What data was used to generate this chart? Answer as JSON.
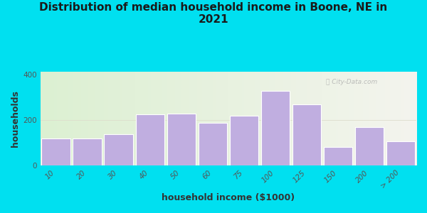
{
  "title": "Distribution of median household income in Boone, NE in\n2021",
  "xlabel": "household income ($1000)",
  "ylabel": "households",
  "bar_labels": [
    "10",
    "20",
    "30",
    "40",
    "50",
    "60",
    "75",
    "100",
    "125",
    "150",
    "200",
    "> 200"
  ],
  "bar_values": [
    120,
    118,
    138,
    225,
    228,
    188,
    218,
    328,
    268,
    82,
    170,
    108
  ],
  "bar_color": "#c0aee0",
  "bar_edge_color": "#ffffff",
  "ylim": [
    0,
    410
  ],
  "yticks": [
    0,
    200,
    400
  ],
  "background_outer": "#00e0f0",
  "title_fontsize": 11,
  "axis_label_fontsize": 9,
  "tick_fontsize": 7.5,
  "watermark_text": "City-Data.com"
}
